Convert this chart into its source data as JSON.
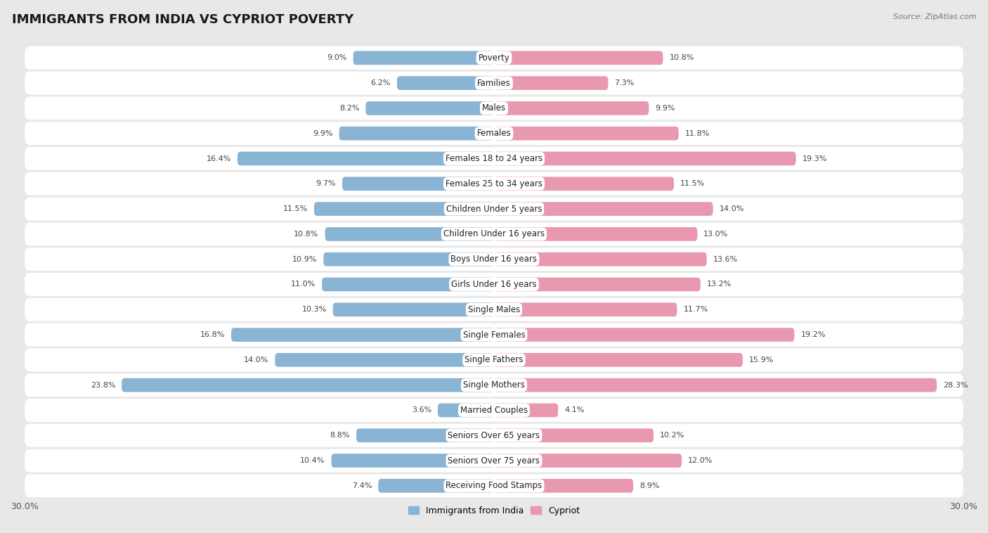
{
  "title": "IMMIGRANTS FROM INDIA VS CYPRIOT POVERTY",
  "source": "Source: ZipAtlas.com",
  "categories": [
    "Poverty",
    "Families",
    "Males",
    "Females",
    "Females 18 to 24 years",
    "Females 25 to 34 years",
    "Children Under 5 years",
    "Children Under 16 years",
    "Boys Under 16 years",
    "Girls Under 16 years",
    "Single Males",
    "Single Females",
    "Single Fathers",
    "Single Mothers",
    "Married Couples",
    "Seniors Over 65 years",
    "Seniors Over 75 years",
    "Receiving Food Stamps"
  ],
  "india_values": [
    9.0,
    6.2,
    8.2,
    9.9,
    16.4,
    9.7,
    11.5,
    10.8,
    10.9,
    11.0,
    10.3,
    16.8,
    14.0,
    23.8,
    3.6,
    8.8,
    10.4,
    7.4
  ],
  "cypriot_values": [
    10.8,
    7.3,
    9.9,
    11.8,
    19.3,
    11.5,
    14.0,
    13.0,
    13.6,
    13.2,
    11.7,
    19.2,
    15.9,
    28.3,
    4.1,
    10.2,
    12.0,
    8.9
  ],
  "india_color": "#8ab4d4",
  "cypriot_color": "#e899b0",
  "india_label": "Immigrants from India",
  "cypriot_label": "Cypriot",
  "xlim": 30.0,
  "background_color": "#e8e8e8",
  "row_color_even": "#f5f5f5",
  "row_color_odd": "#ebebeb",
  "title_fontsize": 13,
  "label_fontsize": 8.5,
  "value_fontsize": 8.0
}
